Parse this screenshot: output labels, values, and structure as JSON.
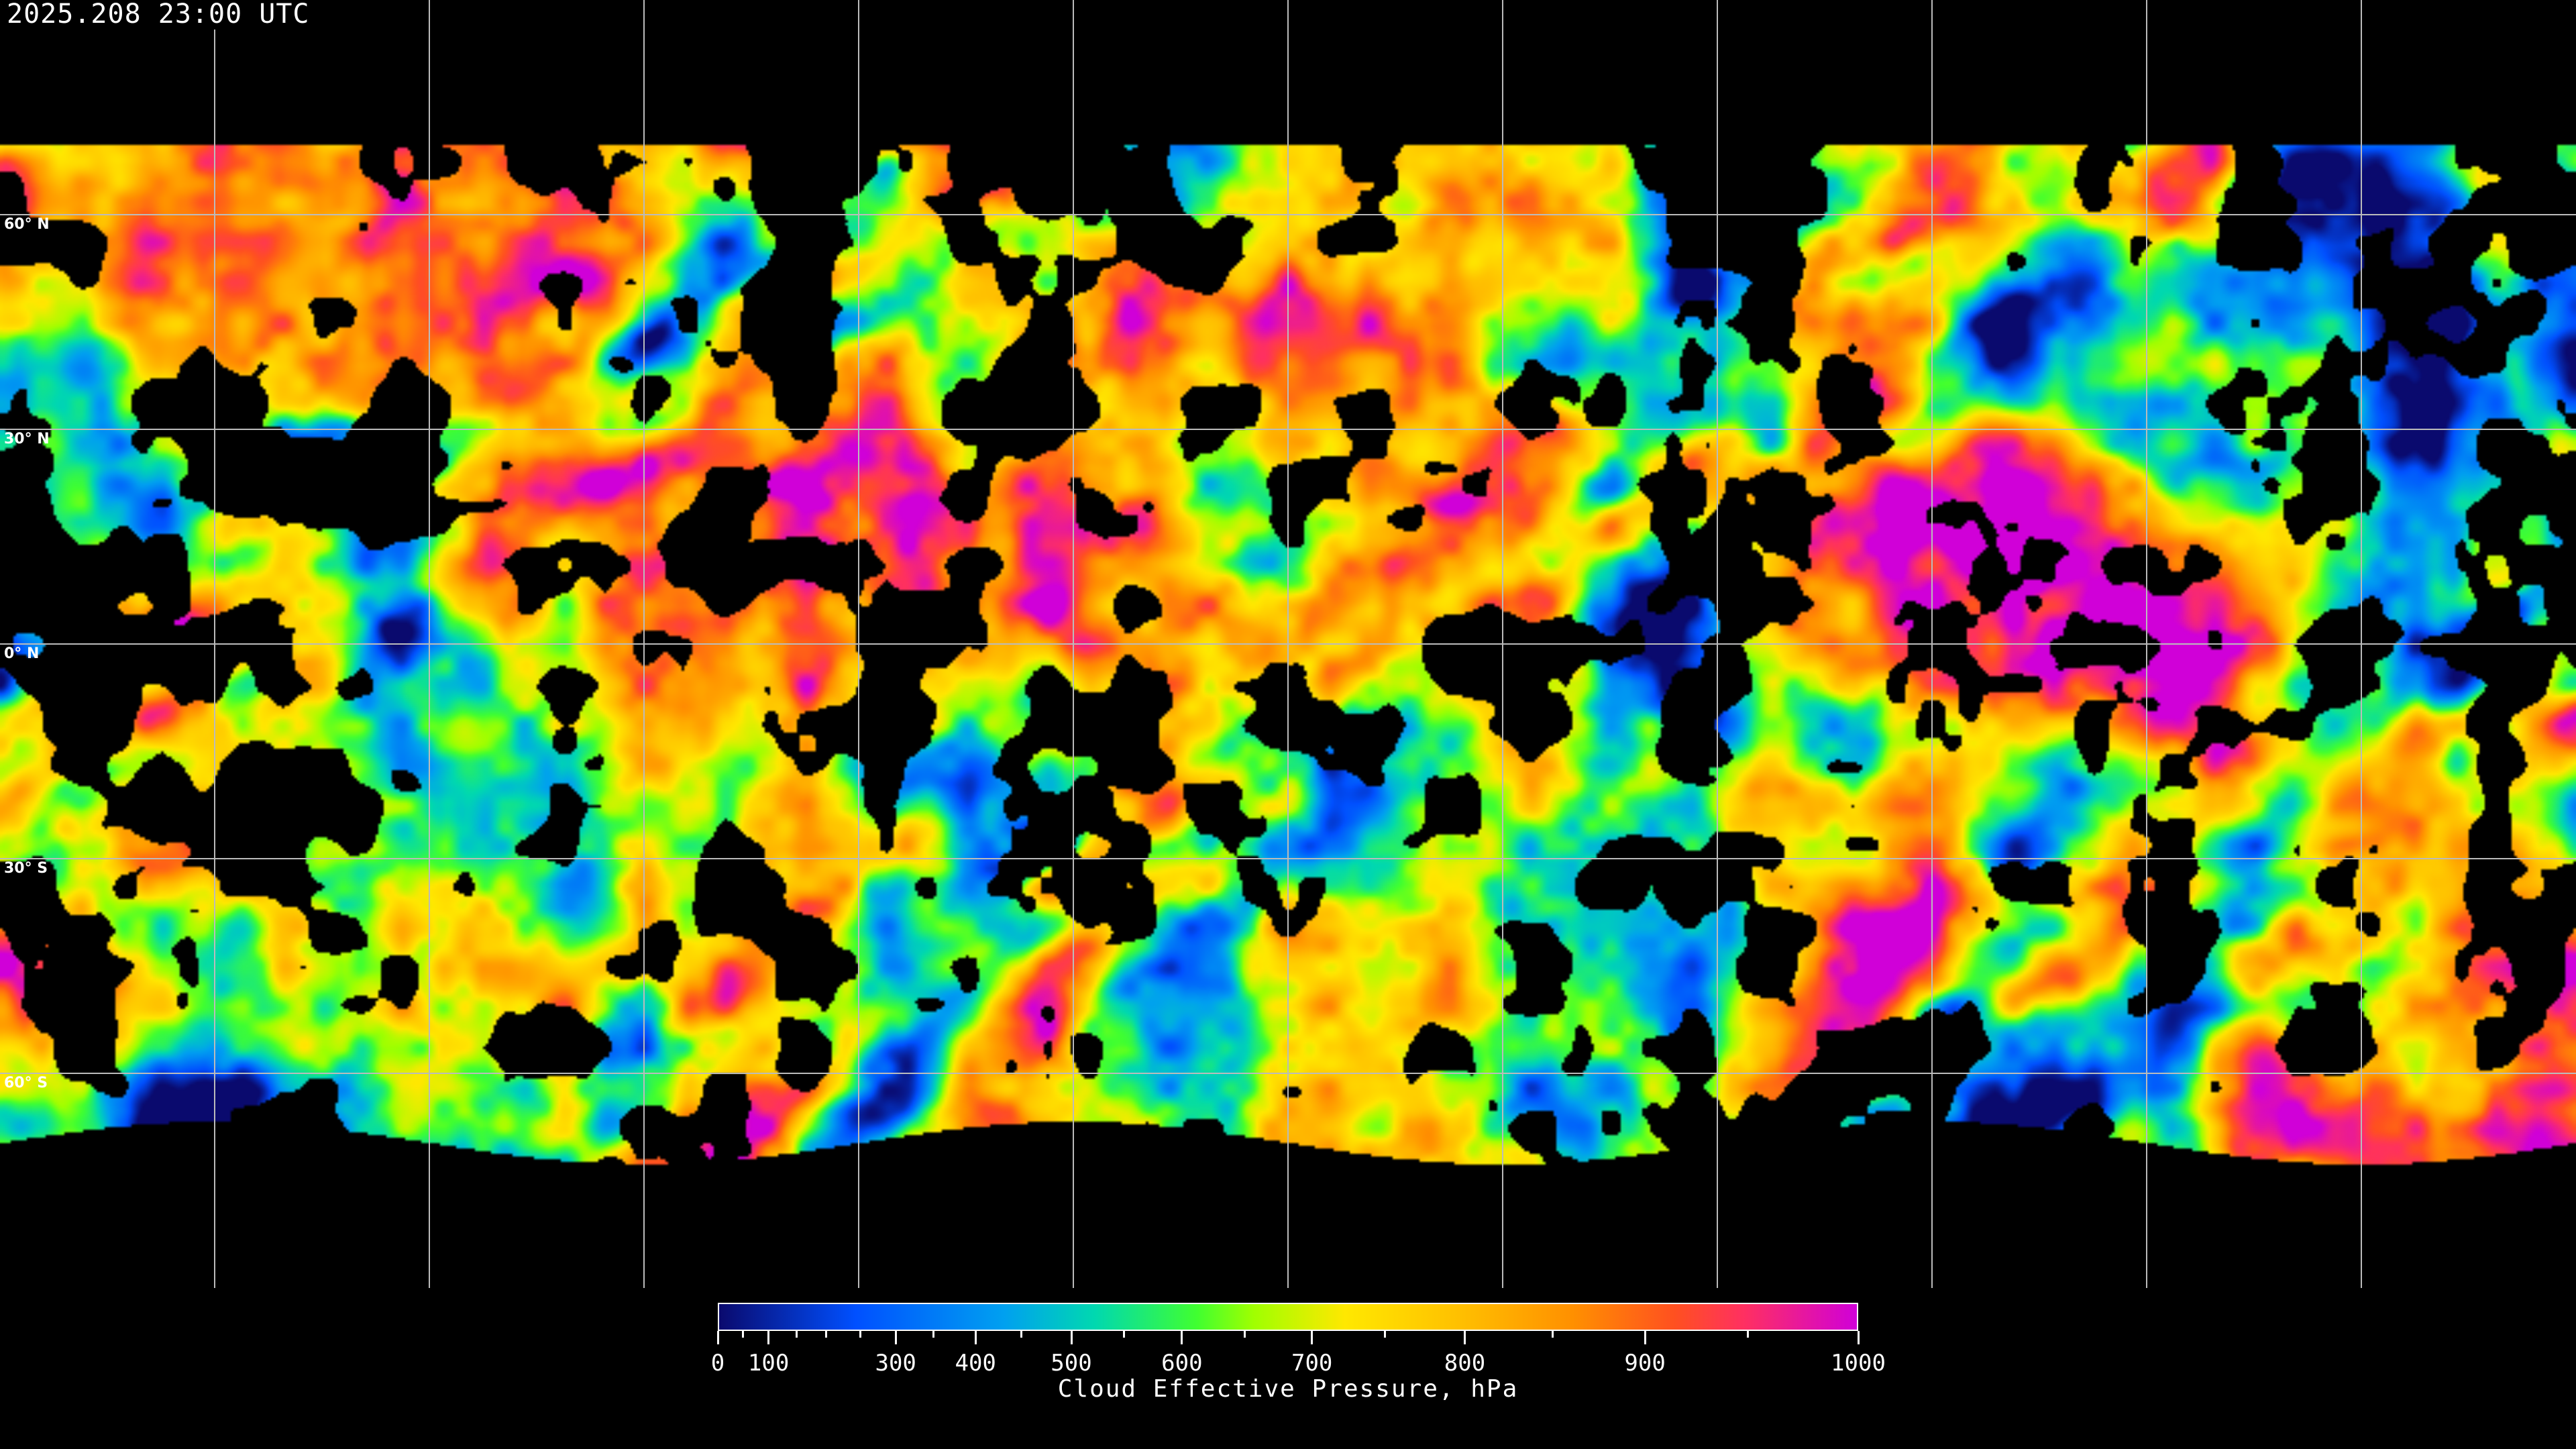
{
  "header": {
    "timestamp": "2025.208 23:00 UTC"
  },
  "map": {
    "projection": "equirectangular",
    "gridlines": true,
    "grid_spacing_deg": 30,
    "latitude_labels": [
      "60° N",
      "30° N",
      "0° N",
      "30° S",
      "60° S"
    ],
    "latitude_values": [
      60,
      30,
      0,
      -30,
      -60
    ],
    "no_data_color": "#000000"
  },
  "colorbar": {
    "label": "Cloud Effective Pressure, hPa",
    "range": [
      0,
      1000
    ],
    "major_ticks": [
      "0",
      "100",
      "300",
      "400",
      "500",
      "600",
      "700",
      "800",
      "900",
      "1000"
    ],
    "minor_ticks": [
      50,
      150,
      200,
      250,
      350,
      450,
      550,
      650,
      750,
      850,
      950
    ],
    "colors": [
      "#0a0a6e",
      "#0050ff",
      "#00a0f0",
      "#00d8b0",
      "#40ff30",
      "#a0ff00",
      "#ffe800",
      "#ffc000",
      "#ff9000",
      "#ff5020",
      "#ff3060",
      "#d000d8"
    ]
  }
}
